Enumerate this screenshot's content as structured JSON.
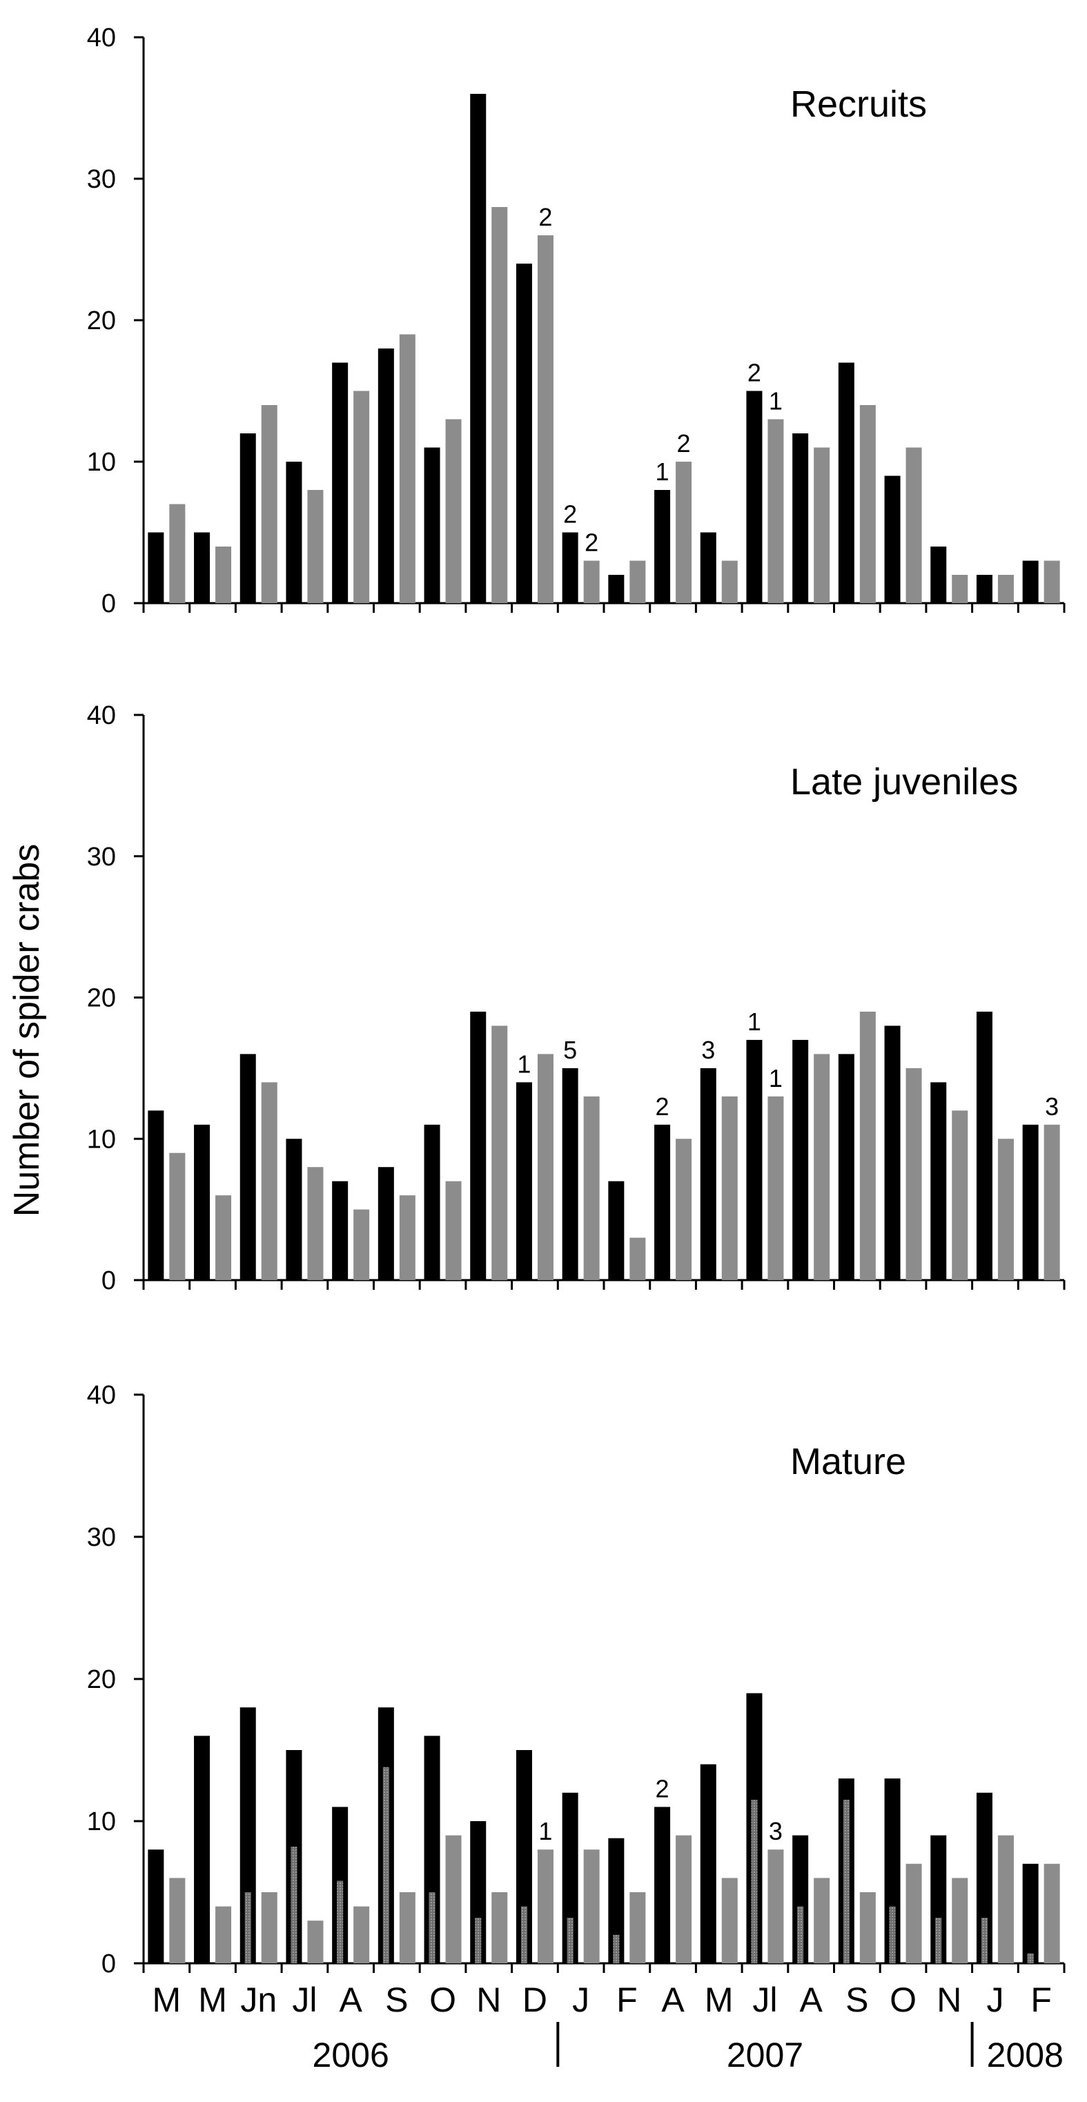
{
  "chart_data": {
    "type": "bar",
    "ylabel": "Number of spider crabs",
    "categories": [
      "M",
      "M",
      "Jn",
      "Jl",
      "A",
      "S",
      "O",
      "N",
      "D",
      "J",
      "F",
      "A",
      "M",
      "Jl",
      "A",
      "S",
      "O",
      "N",
      "J",
      "F"
    ],
    "years": [
      "2006",
      "2007",
      "2008"
    ],
    "ylim": [
      0,
      40
    ],
    "yticks": [
      "0",
      "10",
      "20",
      "30",
      "40"
    ],
    "colors": {
      "black": "#000000",
      "grey": "#8c8c8c",
      "hatch": "#6e6e6e"
    },
    "panels": [
      {
        "label": "Recruits",
        "series": [
          {
            "values": [
              5,
              5,
              12,
              10,
              17,
              18,
              11,
              36,
              24,
              5,
              2,
              8,
              5,
              15,
              12,
              17,
              9,
              4,
              2,
              3
            ]
          },
          {
            "values": [
              7,
              4,
              14,
              8,
              15,
              19,
              13,
              28,
              26,
              3,
              3,
              10,
              3,
              13,
              11,
              14,
              11,
              2,
              2,
              3
            ]
          }
        ],
        "annotations": [
          {
            "category_index": 8,
            "series": 1,
            "text": "2"
          },
          {
            "category_index": 9,
            "series": 0,
            "text": "2"
          },
          {
            "category_index": 9,
            "series": 1,
            "text": "2"
          },
          {
            "category_index": 11,
            "series": 0,
            "text": "1"
          },
          {
            "category_index": 11,
            "series": 1,
            "text": "2"
          },
          {
            "category_index": 13,
            "series": 0,
            "text": "2"
          },
          {
            "category_index": 13,
            "series": 1,
            "text": "1"
          }
        ]
      },
      {
        "label": "Late juveniles",
        "series": [
          {
            "values": [
              12,
              11,
              16,
              10,
              7,
              8,
              11,
              19,
              14,
              15,
              7,
              11,
              15,
              17,
              17,
              16,
              18,
              14,
              19,
              11
            ]
          },
          {
            "values": [
              9,
              6,
              14,
              8,
              5,
              6,
              7,
              18,
              16,
              13,
              3,
              10,
              13,
              13,
              16,
              19,
              15,
              12,
              10,
              11
            ]
          }
        ],
        "annotations": [
          {
            "category_index": 8,
            "series": 0,
            "text": "1"
          },
          {
            "category_index": 9,
            "series": 0,
            "text": "5"
          },
          {
            "category_index": 11,
            "series": 0,
            "text": "2"
          },
          {
            "category_index": 12,
            "series": 0,
            "text": "3"
          },
          {
            "category_index": 13,
            "series": 0,
            "text": "1"
          },
          {
            "category_index": 13,
            "series": 1,
            "text": "1"
          },
          {
            "category_index": 19,
            "series": 1,
            "text": "3"
          }
        ]
      },
      {
        "label": "Mature",
        "series": [
          {
            "values": [
              8,
              16,
              18,
              15,
              11,
              18,
              16,
              10,
              15,
              12,
              8.8,
              11,
              14,
              19,
              9,
              13,
              13,
              9,
              12,
              7
            ]
          },
          {
            "values": [
              6,
              4,
              5,
              3,
              4,
              5,
              9,
              5,
              8,
              8,
              5,
              9,
              6,
              8,
              6,
              5,
              7,
              6,
              9,
              7
            ]
          },
          {
            "values": [
              0,
              0,
              5,
              8.2,
              5.8,
              13.8,
              5,
              3.2,
              4,
              3.2,
              2,
              0,
              0,
              11.5,
              4,
              11.5,
              4,
              3.2,
              3.2,
              0.7
            ]
          }
        ],
        "annotations": [
          {
            "category_index": 8,
            "series": 1,
            "text": "1"
          },
          {
            "category_index": 11,
            "series": 0,
            "text": "2"
          },
          {
            "category_index": 13,
            "series": 1,
            "text": "3"
          }
        ]
      }
    ]
  }
}
